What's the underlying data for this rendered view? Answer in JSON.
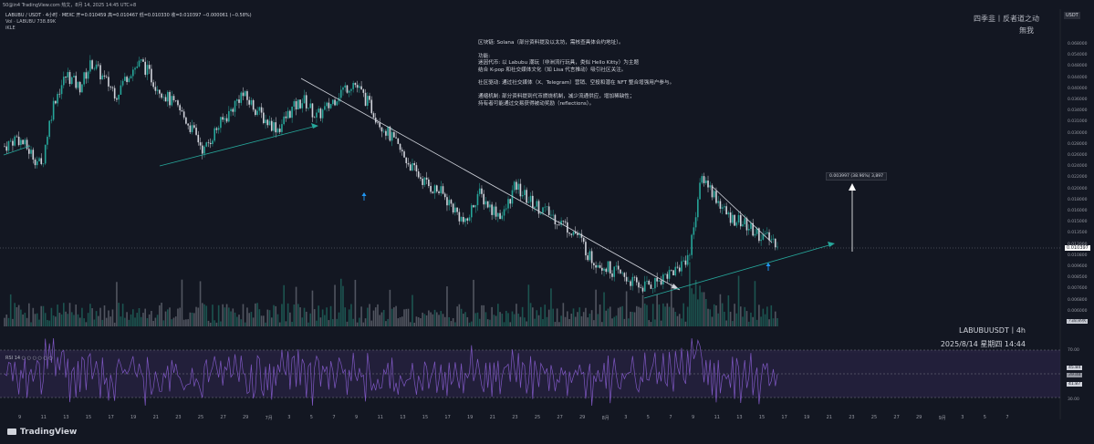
{
  "header": {
    "top_text": "50@in4 TradingView.com 热文，8月 14, 2025 14:45 UTC+8",
    "symbol_line": "LABUBU / USDT · 4小时 · MEXC   开=0.010459  高=0.010467  低=0.010330  收=0.010397  −0.000061 (−0.58%)",
    "volume_line": "Vol · LABUBU  738.89K",
    "indicator_line": "iKLE",
    "watermark": "四季韭丨反者道之动",
    "watermark_sub": "無我",
    "currency_badge": "USDT"
  },
  "notes": {
    "lines": [
      "区块链: Solana（部分资料提及以太坊，需核查具体合约地址）。",
      "",
      "功能:",
      "迷因代币: 以 Labubu 潮玩（非洲流行玩具，类似 Hello Kitty）为主题",
      "结合 K-pop 和社交媒体文化（如 Lisa 代言推动）吸引社区关注。",
      "",
      "社区驱动: 通过社交媒体（X、Telegram）营销、空投和潜在 NFT 整合增强用户参与。",
      "",
      "通缩机制: 部分资料提到代币燃烧机制，减少流通供应，增加稀缺性；",
      "持有者可能通过交易获得被动奖励（reflections）。"
    ]
  },
  "annotation": {
    "measure_label": "0.003997 (38.96%) 3,897"
  },
  "chart_info": {
    "pair_label": "LABUBUUSDT丨4h",
    "date_label": "2025/8/14 星期四 14:44",
    "rsi_label": "RSI  14  ○ ○ ○ ○ ○ ○",
    "last_price": "0.010397",
    "volume_badge": "738.89K",
    "rsi_value_1": "45.84",
    "rsi_value_2": "39.88",
    "rsi_value_3": "41.87",
    "brand": "TradingView"
  },
  "colors": {
    "background": "#131722",
    "up": "#26a69a",
    "down": "#d1d4dc",
    "trend_green": "#26a69a",
    "trend_white": "#d1d4dc",
    "rsi_line": "#7e57c2",
    "rsi_band": "#2a2445",
    "arrow_blue": "#2196f3"
  },
  "chart_data": {
    "type": "candlestick",
    "price_axis": [
      "0.068000",
      "0.054000",
      "0.048000",
      "0.044000",
      "0.040000",
      "0.036000",
      "0.034000",
      "0.031000",
      "0.030000",
      "0.028000",
      "0.026000",
      "0.024000",
      "0.022000",
      "0.020000",
      "0.018000",
      "0.016000",
      "0.015000",
      "0.013500",
      "0.012000",
      "0.010800",
      "0.009600",
      "0.008500",
      "0.007600",
      "0.006800",
      "0.006000",
      "0.005000"
    ],
    "rsi_axis": [
      "70.00",
      "50.00",
      "30.00"
    ],
    "x_labels": [
      "9",
      "11",
      "13",
      "15",
      "17",
      "19",
      "21",
      "23",
      "25",
      "27",
      "29",
      "7月",
      "3",
      "5",
      "7",
      "9",
      "11",
      "13",
      "15",
      "17",
      "19",
      "21",
      "23",
      "25",
      "27",
      "29",
      "8月",
      "3",
      "5",
      "7",
      "9",
      "11",
      "13",
      "15",
      "17",
      "19",
      "21",
      "23",
      "25",
      "27",
      "29",
      "9月",
      "3",
      "5",
      "7"
    ],
    "close_path": [
      0.024,
      0.026,
      0.023,
      0.02,
      0.036,
      0.045,
      0.04,
      0.05,
      0.043,
      0.038,
      0.046,
      0.05,
      0.042,
      0.037,
      0.033,
      0.028,
      0.023,
      0.028,
      0.032,
      0.038,
      0.034,
      0.03,
      0.028,
      0.033,
      0.036,
      0.031,
      0.034,
      0.039,
      0.042,
      0.036,
      0.03,
      0.026,
      0.022,
      0.019,
      0.017,
      0.016,
      0.014,
      0.012,
      0.016,
      0.014,
      0.013,
      0.017,
      0.015,
      0.014,
      0.013,
      0.012,
      0.011,
      0.009,
      0.0085,
      0.008,
      0.0075,
      0.007,
      0.0072,
      0.0078,
      0.0082,
      0.0095,
      0.0185,
      0.0155,
      0.013,
      0.0125,
      0.0115,
      0.0108,
      0.0104
    ]
  }
}
